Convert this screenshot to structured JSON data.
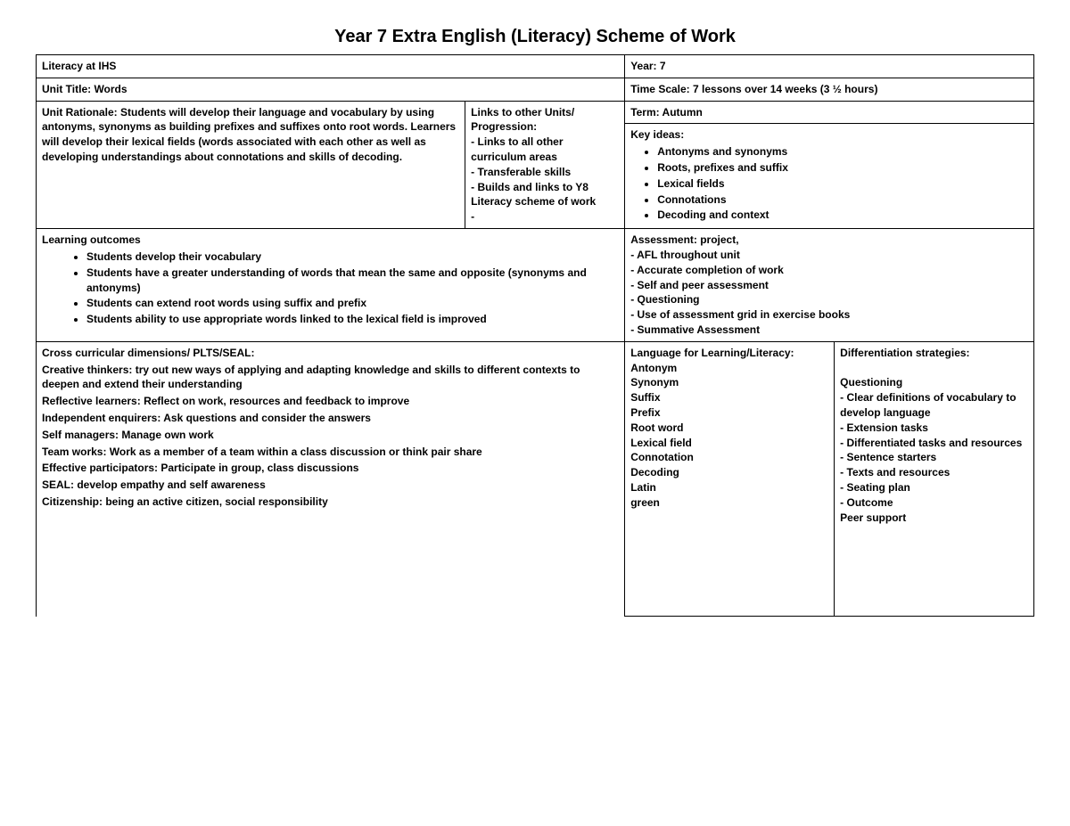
{
  "title": "Year 7 Extra English (Literacy) Scheme of Work",
  "header": {
    "left": "Literacy at IHS",
    "right": "Year: 7"
  },
  "unitRow": {
    "left": "Unit Title: Words",
    "right": "Time Scale: 7 lessons over 14 weeks  (3 ½ hours)"
  },
  "rationaleBlock": {
    "label": "Unit Rationale:",
    "text": "Students will develop their language and vocabulary by using antonyms, synonyms as building prefixes and suffixes onto root words.  Learners will develop their lexical fields (words associated with each other as well as developing understandings about connotations and skills of decoding."
  },
  "linksBlock": {
    "heading": "Links to other Units/ Progression:",
    "items": [
      "- Links to all other curriculum areas",
      "- Transferable skills",
      "- Builds and links to Y8 Literacy scheme of work",
      "-"
    ]
  },
  "termKeyBlock": {
    "term": "Term: Autumn",
    "keyIdeasLabel": "Key ideas:",
    "keyIdeas": [
      "Antonyms and synonyms",
      "Roots, prefixes and suffix",
      "Lexical fields",
      "Connotations",
      "Decoding and context"
    ]
  },
  "outcomesBlock": {
    "heading": "Learning outcomes",
    "items": [
      "Students develop their vocabulary",
      "Students have a greater understanding of words that mean the same and opposite (synonyms and antonyms)",
      "Students can extend root words using suffix and prefix",
      "Students ability to use appropriate words linked to the lexical field is improved"
    ]
  },
  "assessmentBlock": {
    "heading": "Assessment: project,",
    "items": [
      "- AFL throughout unit",
      "- Accurate completion of work",
      "- Self and peer assessment",
      "- Questioning",
      "- Use of assessment grid in exercise books",
      "- Summative Assessment"
    ]
  },
  "crossCurricular": {
    "heading": "Cross curricular dimensions/ PLTS/SEAL:",
    "lines": [
      {
        "label": "Creative thinkers:",
        "text": " try out new ways of applying and adapting knowledge and skills to different contexts to deepen and extend their understanding"
      },
      {
        "label": "Reflective learners:",
        "text": " Reflect on work, resources and feedback to improve"
      },
      {
        "label": "Independent enquirers:",
        "text": "  Ask questions and consider the  answers"
      },
      {
        "label": "Self managers:",
        "text": " Manage own work"
      },
      {
        "label": "Team works:",
        "text": " Work as a member of a team within a class discussion or think pair share"
      },
      {
        "label": "Effective participators:",
        "text": " Participate in group, class discussions"
      },
      {
        "label": "SEAL:",
        "text": " develop empathy and self awareness"
      },
      {
        "label": "Citizenship:",
        "text": " being an active citizen, social responsibility"
      }
    ]
  },
  "languageBlock": {
    "heading": "Language for Learning/Literacy:",
    "items": [
      "Antonym",
      "Synonym",
      "Suffix",
      "Prefix",
      "Root word",
      "Lexical field",
      "Connotation",
      "Decoding",
      "Latin",
      "green"
    ]
  },
  "diffBlock": {
    "heading": "Differentiation strategies:",
    "items": [
      "",
      "Questioning",
      "- Clear definitions of vocabulary to develop language",
      "- Extension tasks",
      "- Differentiated tasks and resources",
      "- Sentence starters",
      "- Texts and resources",
      "- Seating plan",
      "- Outcome",
      "Peer support"
    ]
  },
  "layout": {
    "col1_pct": 27,
    "col2_pct": 16,
    "col3_pct": 16,
    "col4_pct": 21,
    "col5_pct": 20
  },
  "colors": {
    "text": "#000000",
    "border": "#000000",
    "background": "#ffffff"
  }
}
